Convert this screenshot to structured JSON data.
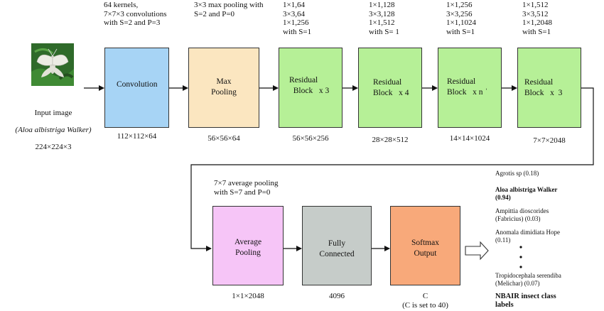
{
  "input": {
    "label": "Input image",
    "species": "(Aloa albistriga Walker)",
    "size": "224×224×3",
    "image_icon": "moth-photo-icon"
  },
  "stages": [
    {
      "id": "conv",
      "title": "Convolution",
      "params": "64 kernels,\n7×7×3 convolutions\nwith S=2 and P=3",
      "output": "112×112×64",
      "color": "#a7d4f5"
    },
    {
      "id": "pool",
      "title": "Max\nPooling",
      "params": "3×3 max pooling with\nS=2 and P=0",
      "output": "56×56×64",
      "color": "#fbe6c0"
    },
    {
      "id": "res1",
      "title": "Residual\n  Block   x 3",
      "params": "1×1,64\n3×3,64\n1×1,256\n   with S=1",
      "output": "56×56×256",
      "color": "#b6f097"
    },
    {
      "id": "res2",
      "title": "Residual\nBlock   x 4",
      "params": "1×1,128\n3×3,128\n1×1,512\nwith S= 1",
      "output": "28×28×512",
      "color": "#b6f097"
    },
    {
      "id": "res3",
      "title": "Residual\nBlock   x n ˈ",
      "params": "1×1,256\n3×3,256\n1×1,1024\nwith S=1",
      "output": "14×14×1024",
      "color": "#b6f097"
    },
    {
      "id": "res4",
      "title": "Residual\nBlock   x  3",
      "params": "1×1,512\n3×3,512\n1×1,2048\nwith S=1",
      "output": "7×7×2048",
      "color": "#b6f097"
    }
  ],
  "stages2": [
    {
      "id": "avg",
      "title": "Average\nPooling",
      "params": "7×7 average pooling\nwith S=7 and P=0",
      "output": "1×1×2048",
      "color": "#f6c5f7"
    },
    {
      "id": "fc",
      "title": "Fully\nConnected",
      "params": "",
      "output": "4096",
      "color": "#c6ccc9"
    },
    {
      "id": "soft",
      "title": "Softmax\nOutput",
      "params": "",
      "output": "C\n(C is set to 40)",
      "color": "#f8a97a"
    }
  ],
  "class_labels": {
    "items": [
      {
        "text": "Agrotis sp (0.18)",
        "bold": false
      },
      {
        "text": "Aloa albistriga Walker\n(0.94)",
        "bold": true
      },
      {
        "text": "Ampittia dioscorides\n(Fabricius) (0.03)",
        "bold": false
      },
      {
        "text": "Anomala dimidiata Hope\n(0.11)",
        "bold": false
      },
      {
        "text": "Tropidocephala serendiba\n(Melichar) (0.07)",
        "bold": false
      }
    ],
    "footer": "NBAIR insect class\nlabels"
  }
}
